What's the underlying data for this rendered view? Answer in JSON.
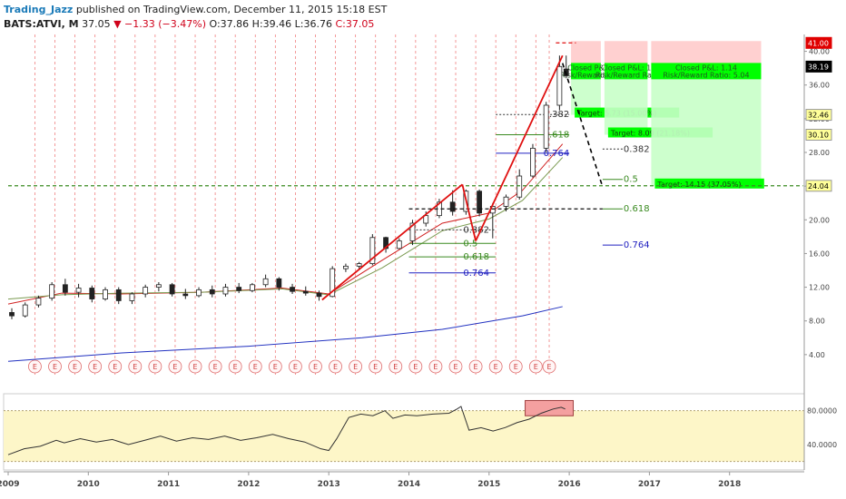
{
  "header": {
    "author": "Trading_Jazz",
    "published": "published on TradingView.com, December 11, 2015 15:18 EST",
    "symbol": "BATS:ATVI, M",
    "last": "37.05",
    "change": "▼ −1.33 (−3.47%)",
    "ohlc_o": "O:37.86",
    "ohlc_h": "H:39.46",
    "ohlc_l": "L:36.76",
    "ohlc_c": "C:37.05"
  },
  "colors": {
    "up_candle": "#ffffff",
    "down_candle": "#222222",
    "ma_fast": "#d02020",
    "ma_mid": "#7a9a50",
    "ma_slow": "#2030c0",
    "trend_line": "#e01010",
    "fib_black": "#333333",
    "fib_green": "#3a8a20",
    "fib_blue": "#2020c0",
    "target_box": "#00ff00",
    "stop_box": "#ffc8c8",
    "rsi_band": "#fdf6c8",
    "price_tag": "#000000",
    "stop_tag": "#e00000",
    "level_tag": "#ffff99"
  },
  "chart_data": {
    "type": "candlestick",
    "title": "BATS:ATVI, M",
    "x_axis": {
      "labels": [
        "2009",
        "2010",
        "2011",
        "2012",
        "2013",
        "2014",
        "2015",
        "2016",
        "2017",
        "2018"
      ],
      "range": [
        "2009-01",
        "2018-12"
      ]
    },
    "y_axis": {
      "labels": [
        "4.00",
        "8.00",
        "12.00",
        "16.00",
        "20.00",
        "24.00",
        "28.00",
        "32.00",
        "36.00",
        "40.00"
      ],
      "range": [
        0,
        42
      ],
      "tags": [
        {
          "text": "41.00",
          "value": 41.0,
          "kind": "stop"
        },
        {
          "text": "38.19",
          "value": 38.19,
          "kind": "price"
        },
        {
          "text": "32.46",
          "value": 32.46,
          "kind": "level"
        },
        {
          "text": "30.10",
          "value": 30.1,
          "kind": "level"
        },
        {
          "text": "24.04",
          "value": 24.04,
          "kind": "level"
        }
      ]
    },
    "earnings_marker": "E",
    "earnings_dates": [
      "2009-05",
      "2009-08",
      "2009-11",
      "2010-02",
      "2010-05",
      "2010-08",
      "2010-11",
      "2011-02",
      "2011-05",
      "2011-08",
      "2011-11",
      "2012-02",
      "2012-05",
      "2012-08",
      "2012-11",
      "2013-02",
      "2013-05",
      "2013-08",
      "2013-11",
      "2014-02",
      "2014-05",
      "2014-08",
      "2014-11",
      "2015-02",
      "2015-05",
      "2015-08",
      "2015-10"
    ],
    "candles": [
      {
        "t": "2009-01",
        "o": 9.0,
        "h": 9.5,
        "l": 8.2,
        "c": 8.6
      },
      {
        "t": "2009-03",
        "o": 8.6,
        "h": 10.2,
        "l": 8.4,
        "c": 9.9
      },
      {
        "t": "2009-05",
        "o": 9.9,
        "h": 11.0,
        "l": 9.6,
        "c": 10.7
      },
      {
        "t": "2009-07",
        "o": 10.7,
        "h": 12.6,
        "l": 10.4,
        "c": 12.3
      },
      {
        "t": "2009-09",
        "o": 12.3,
        "h": 13.0,
        "l": 11.0,
        "c": 11.4
      },
      {
        "t": "2009-11",
        "o": 11.4,
        "h": 12.4,
        "l": 10.8,
        "c": 11.9
      },
      {
        "t": "2010-01",
        "o": 11.9,
        "h": 12.2,
        "l": 10.2,
        "c": 10.6
      },
      {
        "t": "2010-03",
        "o": 10.6,
        "h": 12.0,
        "l": 10.4,
        "c": 11.7
      },
      {
        "t": "2010-05",
        "o": 11.7,
        "h": 12.0,
        "l": 10.0,
        "c": 10.4
      },
      {
        "t": "2010-07",
        "o": 10.4,
        "h": 11.4,
        "l": 10.0,
        "c": 11.2
      },
      {
        "t": "2010-09",
        "o": 11.2,
        "h": 12.3,
        "l": 10.8,
        "c": 12.0
      },
      {
        "t": "2010-11",
        "o": 12.0,
        "h": 12.6,
        "l": 11.5,
        "c": 12.3
      },
      {
        "t": "2011-01",
        "o": 12.3,
        "h": 12.5,
        "l": 10.9,
        "c": 11.2
      },
      {
        "t": "2011-03",
        "o": 11.2,
        "h": 11.8,
        "l": 10.6,
        "c": 11.0
      },
      {
        "t": "2011-05",
        "o": 11.0,
        "h": 12.0,
        "l": 10.8,
        "c": 11.7
      },
      {
        "t": "2011-07",
        "o": 11.7,
        "h": 12.2,
        "l": 10.8,
        "c": 11.2
      },
      {
        "t": "2011-09",
        "o": 11.2,
        "h": 12.4,
        "l": 10.9,
        "c": 12.0
      },
      {
        "t": "2011-11",
        "o": 12.0,
        "h": 12.5,
        "l": 11.3,
        "c": 11.6
      },
      {
        "t": "2012-01",
        "o": 11.6,
        "h": 12.5,
        "l": 11.4,
        "c": 12.3
      },
      {
        "t": "2012-03",
        "o": 12.3,
        "h": 13.5,
        "l": 12.0,
        "c": 13.0
      },
      {
        "t": "2012-05",
        "o": 13.0,
        "h": 13.2,
        "l": 11.6,
        "c": 12.0
      },
      {
        "t": "2012-07",
        "o": 12.0,
        "h": 12.4,
        "l": 11.2,
        "c": 11.5
      },
      {
        "t": "2012-09",
        "o": 11.5,
        "h": 12.1,
        "l": 11.0,
        "c": 11.3
      },
      {
        "t": "2012-11",
        "o": 11.3,
        "h": 11.6,
        "l": 10.4,
        "c": 10.9
      },
      {
        "t": "2013-01",
        "o": 10.9,
        "h": 14.5,
        "l": 10.8,
        "c": 14.2
      },
      {
        "t": "2013-03",
        "o": 14.2,
        "h": 14.8,
        "l": 13.8,
        "c": 14.5
      },
      {
        "t": "2013-05",
        "o": 14.5,
        "h": 15.0,
        "l": 14.0,
        "c": 14.8
      },
      {
        "t": "2013-07",
        "o": 14.8,
        "h": 18.3,
        "l": 14.6,
        "c": 17.9
      },
      {
        "t": "2013-09",
        "o": 17.9,
        "h": 18.0,
        "l": 16.1,
        "c": 16.6
      },
      {
        "t": "2013-11",
        "o": 16.6,
        "h": 17.8,
        "l": 16.5,
        "c": 17.5
      },
      {
        "t": "2014-01",
        "o": 17.5,
        "h": 20.0,
        "l": 17.0,
        "c": 19.6
      },
      {
        "t": "2014-03",
        "o": 19.6,
        "h": 21.0,
        "l": 19.2,
        "c": 20.5
      },
      {
        "t": "2014-05",
        "o": 20.5,
        "h": 22.5,
        "l": 20.2,
        "c": 22.1
      },
      {
        "t": "2014-07",
        "o": 22.1,
        "h": 23.5,
        "l": 20.5,
        "c": 21.0
      },
      {
        "t": "2014-09",
        "o": 21.0,
        "h": 23.6,
        "l": 20.6,
        "c": 23.4
      },
      {
        "t": "2014-11",
        "o": 23.4,
        "h": 23.6,
        "l": 20.4,
        "c": 20.8
      },
      {
        "t": "2015-01",
        "o": 20.8,
        "h": 22.0,
        "l": 17.8,
        "c": 21.6
      },
      {
        "t": "2015-03",
        "o": 21.6,
        "h": 23.0,
        "l": 21.0,
        "c": 22.7
      },
      {
        "t": "2015-05",
        "o": 22.7,
        "h": 26.0,
        "l": 22.4,
        "c": 25.2
      },
      {
        "t": "2015-07",
        "o": 25.2,
        "h": 29.0,
        "l": 25.0,
        "c": 28.5
      },
      {
        "t": "2015-09",
        "o": 28.5,
        "h": 34.0,
        "l": 28.0,
        "c": 33.6
      },
      {
        "t": "2015-11",
        "o": 33.6,
        "h": 39.5,
        "l": 33.0,
        "c": 38.2
      },
      {
        "t": "2015-12",
        "o": 37.9,
        "h": 39.5,
        "l": 36.8,
        "c": 37.1
      }
    ],
    "moving_averages": [
      {
        "name": "MA fast",
        "color": "#d02020",
        "points": [
          [
            "2009-01",
            10.0
          ],
          [
            "2009-09",
            11.3
          ],
          [
            "2010-06",
            11.2
          ],
          [
            "2011-06",
            11.4
          ],
          [
            "2012-06",
            11.9
          ],
          [
            "2013-01",
            11.2
          ],
          [
            "2013-09",
            15.2
          ],
          [
            "2014-06",
            19.6
          ],
          [
            "2015-01",
            20.8
          ],
          [
            "2015-06",
            23.5
          ],
          [
            "2015-12",
            29.0
          ]
        ]
      },
      {
        "name": "MA mid",
        "color": "#7a9a50",
        "points": [
          [
            "2009-01",
            10.6
          ],
          [
            "2009-09",
            11.1
          ],
          [
            "2010-06",
            11.3
          ],
          [
            "2011-06",
            11.4
          ],
          [
            "2012-06",
            11.8
          ],
          [
            "2013-01",
            11.1
          ],
          [
            "2013-09",
            14.3
          ],
          [
            "2014-06",
            18.7
          ],
          [
            "2015-01",
            20.1
          ],
          [
            "2015-06",
            22.3
          ],
          [
            "2015-12",
            27.4
          ]
        ]
      },
      {
        "name": "MA slow",
        "color": "#2030c0",
        "points": [
          [
            "2009-01",
            3.2
          ],
          [
            "2010-06",
            4.2
          ],
          [
            "2012-01",
            5.0
          ],
          [
            "2013-06",
            6.0
          ],
          [
            "2014-06",
            7.0
          ],
          [
            "2015-06",
            8.6
          ],
          [
            "2015-12",
            9.7
          ]
        ]
      }
    ],
    "trend_lines": [
      {
        "from": [
          "2012-12",
          10.5
        ],
        "to": [
          "2014-09",
          24.2
        ],
        "color": "#e01010"
      },
      {
        "from": [
          "2014-09",
          24.2
        ],
        "to": [
          "2014-11",
          17.5
        ],
        "color": "#e01010"
      },
      {
        "from": [
          "2014-11",
          17.5
        ],
        "to": [
          "2015-12",
          39.5
        ],
        "color": "#e01010"
      }
    ],
    "projection": {
      "from": [
        "2015-12",
        38.6
      ],
      "to": [
        "2016-06",
        23.9
      ],
      "style": "dashed"
    },
    "resistance_lines": [
      {
        "value": 41.0,
        "from": "2015-11",
        "to": "2016-02",
        "color": "#e01010"
      },
      {
        "value": 21.3,
        "from": "2014-01",
        "to": "2016-06",
        "color": "#111111"
      },
      {
        "value": 24.04,
        "from": "2009-01",
        "to": "2018-12",
        "color": "#3a8a20"
      }
    ],
    "fib_sets": [
      {
        "name": "fib-1",
        "levels": [
          {
            "label": "0.382",
            "value": 18.8,
            "color": "#333333"
          },
          {
            "label": "0.5",
            "value": 17.2,
            "color": "#3a8a20"
          },
          {
            "label": "0.618",
            "value": 15.6,
            "color": "#3a8a20"
          },
          {
            "label": "0.764",
            "value": 13.7,
            "color": "#2020c0"
          }
        ],
        "from": "2014-01",
        "to": "2015-02"
      },
      {
        "name": "fib-2",
        "levels": [
          {
            "label": "0.382",
            "value": 32.5,
            "color": "#333333"
          },
          {
            "label": "0.618",
            "value": 30.1,
            "color": "#3a8a20"
          },
          {
            "label": "0.764",
            "value": 27.9,
            "color": "#2020c0"
          }
        ],
        "from": "2015-02",
        "to": "2016-01"
      },
      {
        "name": "fib-3",
        "levels": [
          {
            "label": "0.382",
            "value": 28.4,
            "color": "#333333"
          },
          {
            "label": "0.5",
            "value": 24.8,
            "color": "#3a8a20"
          },
          {
            "label": "0.618",
            "value": 21.3,
            "color": "#3a8a20"
          },
          {
            "label": "0.764",
            "value": 17.0,
            "color": "#2020c0"
          }
        ],
        "from": "2016-06",
        "to": "2016-09"
      }
    ],
    "positions": [
      {
        "closed_label": "Closed P&",
        "rr_label": "Risk/Reward R",
        "target_label": "Target: 5.73 (15.00%)",
        "entry": 38.19,
        "target": 32.46,
        "stop": 41.0,
        "from": "2016-01",
        "to": "2016-06"
      },
      {
        "closed_label": "Closed P&L: 1",
        "rr_label": "Risk/Reward Rati",
        "target_label": "Target: 8.09 (21.18%)",
        "entry": 38.19,
        "target": 30.1,
        "stop": 41.0,
        "from": "2016-06",
        "to": "2017-01"
      },
      {
        "closed_label": "Closed P&L: 1.14",
        "rr_label": "Risk/Reward Ratio: 5.04",
        "target_label": "Target: 14.15 (37.05%)",
        "entry": 38.19,
        "target": 24.04,
        "stop": 41.0,
        "from": "2017-01",
        "to": "2018-06"
      }
    ],
    "rsi": {
      "labels": [
        "80.0000",
        "40.0000"
      ],
      "range": [
        10,
        100
      ],
      "band": [
        20,
        80
      ],
      "values": [
        [
          2009.0,
          28
        ],
        [
          2009.2,
          35
        ],
        [
          2009.4,
          38
        ],
        [
          2009.6,
          45
        ],
        [
          2009.7,
          42
        ],
        [
          2009.9,
          47
        ],
        [
          2010.1,
          43
        ],
        [
          2010.3,
          46
        ],
        [
          2010.5,
          40
        ],
        [
          2010.7,
          45
        ],
        [
          2010.9,
          50
        ],
        [
          2011.1,
          44
        ],
        [
          2011.3,
          48
        ],
        [
          2011.5,
          46
        ],
        [
          2011.7,
          50
        ],
        [
          2011.9,
          45
        ],
        [
          2012.1,
          48
        ],
        [
          2012.3,
          52
        ],
        [
          2012.5,
          47
        ],
        [
          2012.7,
          43
        ],
        [
          2012.9,
          35
        ],
        [
          2013.0,
          33
        ],
        [
          2013.1,
          47
        ],
        [
          2013.25,
          72
        ],
        [
          2013.4,
          76
        ],
        [
          2013.55,
          74
        ],
        [
          2013.7,
          80
        ],
        [
          2013.8,
          71
        ],
        [
          2013.95,
          75
        ],
        [
          2014.1,
          74
        ],
        [
          2014.3,
          76
        ],
        [
          2014.5,
          77
        ],
        [
          2014.6,
          82
        ],
        [
          2014.65,
          85
        ],
        [
          2014.75,
          57
        ],
        [
          2014.9,
          60
        ],
        [
          2015.05,
          56
        ],
        [
          2015.2,
          60
        ],
        [
          2015.35,
          66
        ],
        [
          2015.5,
          70
        ],
        [
          2015.65,
          77
        ],
        [
          2015.8,
          82
        ],
        [
          2015.9,
          84
        ],
        [
          2015.95,
          82
        ]
      ],
      "highlight_box": {
        "from": 2015.45,
        "to": 2016.05,
        "low": 74,
        "high": 92
      }
    }
  }
}
